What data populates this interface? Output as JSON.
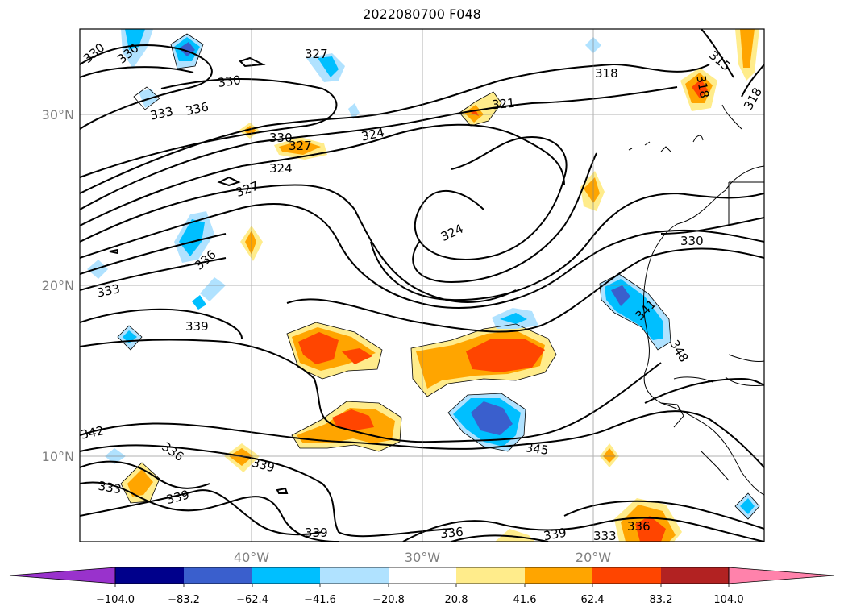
{
  "title": "2022080700 F048",
  "map": {
    "lat_ticks": [
      "30°N",
      "20°N",
      "10°N"
    ],
    "lon_ticks": [
      "40°W",
      "30°W",
      "20°W"
    ],
    "grid": true,
    "contour_labels": [
      "330",
      "330",
      "327",
      "330",
      "333",
      "336",
      "318",
      "315",
      "318",
      "321",
      "324",
      "330",
      "327",
      "324",
      "327",
      "324",
      "336",
      "330",
      "333",
      "339",
      "341",
      "348",
      "342",
      "336",
      "339",
      "333",
      "339",
      "345",
      "339",
      "336",
      "339",
      "333",
      "336",
      "318"
    ]
  },
  "colorbar": {
    "ticks": [
      "−104.0",
      "−83.2",
      "−62.4",
      "−41.6",
      "−20.8",
      "20.8",
      "41.6",
      "62.4",
      "83.2",
      "104.0"
    ],
    "colors": [
      "#9932cc",
      "#00008b",
      "#3a5fcd",
      "#00bfff",
      "#b0e2ff",
      "#ffffff",
      "#ffec8b",
      "#ffa500",
      "#ff4500",
      "#b22222",
      "#ff82ab"
    ],
    "extend": "both"
  }
}
